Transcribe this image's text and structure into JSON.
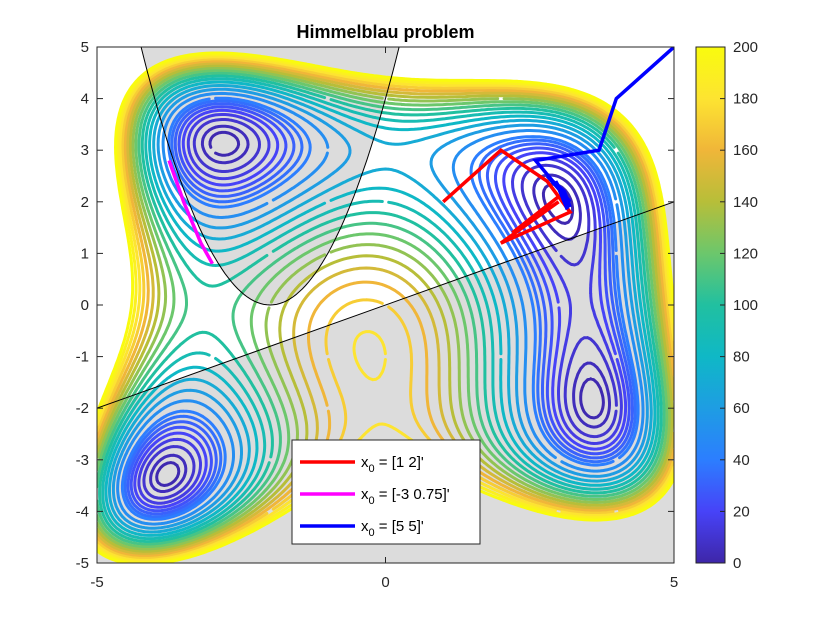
{
  "chart_data": {
    "type": "contour",
    "title": "Himmelblau problem",
    "xlabel": "",
    "ylabel": "",
    "xlim": [
      -5,
      5
    ],
    "ylim": [
      -5,
      5
    ],
    "xticks": [
      "-5",
      "0",
      "5"
    ],
    "yticks": [
      "5",
      "4",
      "3",
      "2",
      "1",
      "0",
      "-1",
      "-2",
      "-3",
      "-4",
      "-5"
    ],
    "contour_levels": [
      2,
      5,
      10,
      15,
      20,
      25,
      30,
      35,
      40,
      50,
      60,
      70,
      80,
      90,
      100,
      110,
      120,
      130,
      140,
      150,
      160,
      170,
      180,
      190,
      200
    ],
    "colorbar": {
      "min": 0,
      "max": 200,
      "ticks": [
        "200",
        "180",
        "160",
        "140",
        "120",
        "100",
        "80",
        "60",
        "40",
        "20",
        "0"
      ],
      "colormap": [
        "#3e26a8",
        "#4743f8",
        "#2c7eff",
        "#1e9de3",
        "#0fb8c6",
        "#21c0a0",
        "#6cc76c",
        "#b7be39",
        "#f0b639",
        "#fde431",
        "#f9fb0e"
      ]
    },
    "constraints": {
      "shade_color": "#dcdcdc",
      "parabola": "y = (x + 2)^2",
      "line": "y = 0.4 x"
    },
    "series": [
      {
        "name": "x_0 = [1  2]'",
        "color": "#ff0000",
        "points": [
          [
            1,
            2
          ],
          [
            2,
            3
          ],
          [
            2.8,
            2.4
          ],
          [
            3.2,
            1.8
          ],
          [
            2.0,
            1.2
          ],
          [
            3.0,
            2.0
          ],
          [
            2.2,
            1.4
          ],
          [
            3.0,
            2.1
          ]
        ]
      },
      {
        "name": "x_0 = [-3  0.75]'",
        "color": "#ff00ff",
        "points": [
          [
            -3,
            0.8
          ],
          [
            -3.2,
            1.2
          ],
          [
            -3.5,
            2.0
          ],
          [
            -3.75,
            2.8
          ]
        ]
      },
      {
        "name": "x_0 = [5  5]'",
        "color": "#0000ff",
        "points": [
          [
            5,
            5
          ],
          [
            4,
            4
          ],
          [
            3.7,
            3.0
          ],
          [
            2.6,
            2.8
          ],
          [
            3.2,
            2.0
          ],
          [
            2.8,
            2.5
          ],
          [
            3.1,
            2.2
          ],
          [
            3.2,
            1.9
          ],
          [
            2.95,
            2.4
          ],
          [
            3.15,
            1.85
          ]
        ]
      }
    ],
    "legend": {
      "location": "bottom-center",
      "entries": [
        {
          "prefix": "x",
          "sub": "0",
          "rest": " = [1  2]'",
          "color": "#ff0000"
        },
        {
          "prefix": "x",
          "sub": "0",
          "rest": " = [-3  0.75]'",
          "color": "#ff00ff"
        },
        {
          "prefix": "x",
          "sub": "0",
          "rest": " = [5  5]'",
          "color": "#0000ff"
        }
      ]
    }
  }
}
